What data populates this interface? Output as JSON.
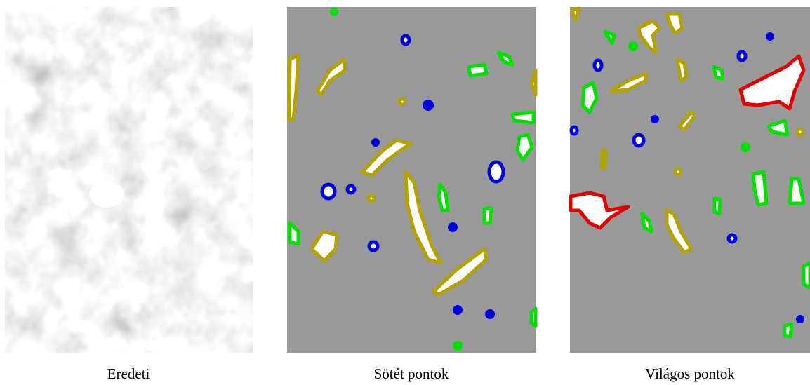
{
  "panels": [
    {
      "caption": "Eredeti"
    },
    {
      "caption": "Sötét pontok"
    },
    {
      "caption": "Világos pontok"
    }
  ]
}
